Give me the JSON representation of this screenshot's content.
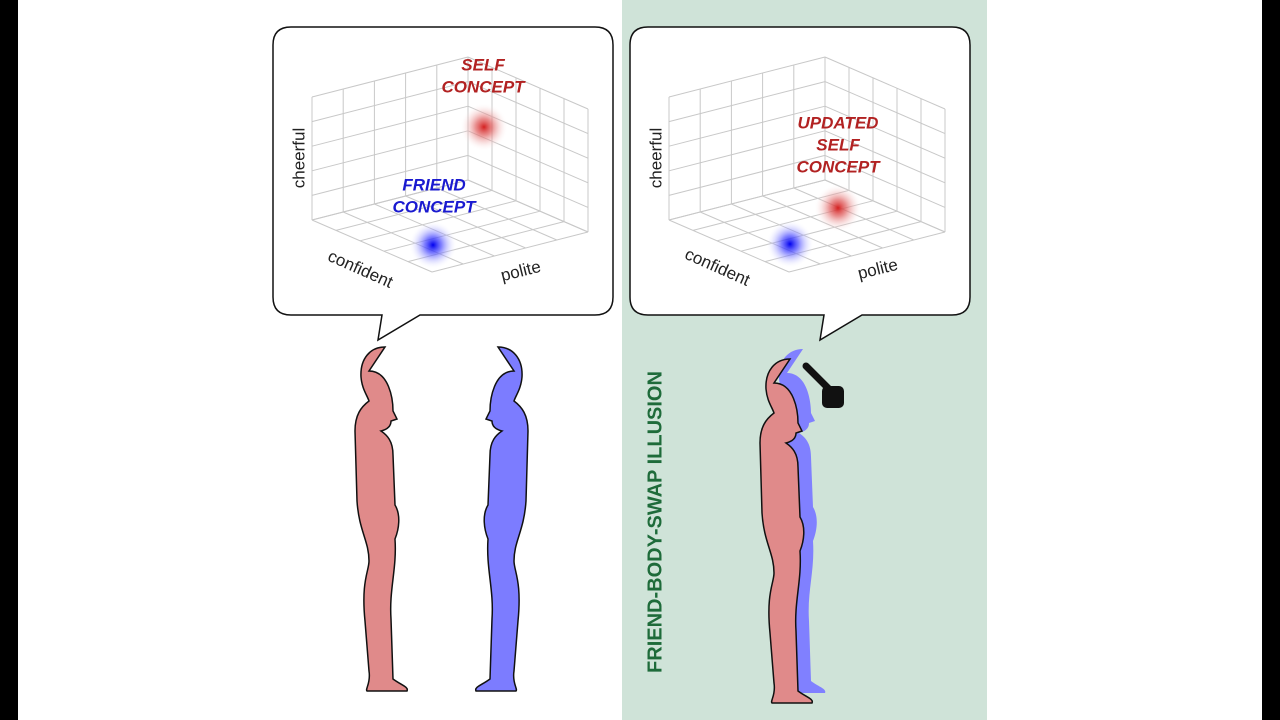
{
  "left_panel": {
    "blue_label": [
      "FRIEND",
      "CONCEPT"
    ],
    "red_label": [
      "SELF",
      "CONCEPT"
    ],
    "axes": {
      "vertical": "cheerful",
      "left": "confident",
      "right": "polite"
    }
  },
  "right_panel": {
    "red_label": [
      "UPDATED",
      "SELF",
      "CONCEPT"
    ],
    "axes": {
      "vertical": "cheerful",
      "left": "confident",
      "right": "polite"
    },
    "caption": "FRIEND-BODY-SWAP ILLUSION"
  }
}
